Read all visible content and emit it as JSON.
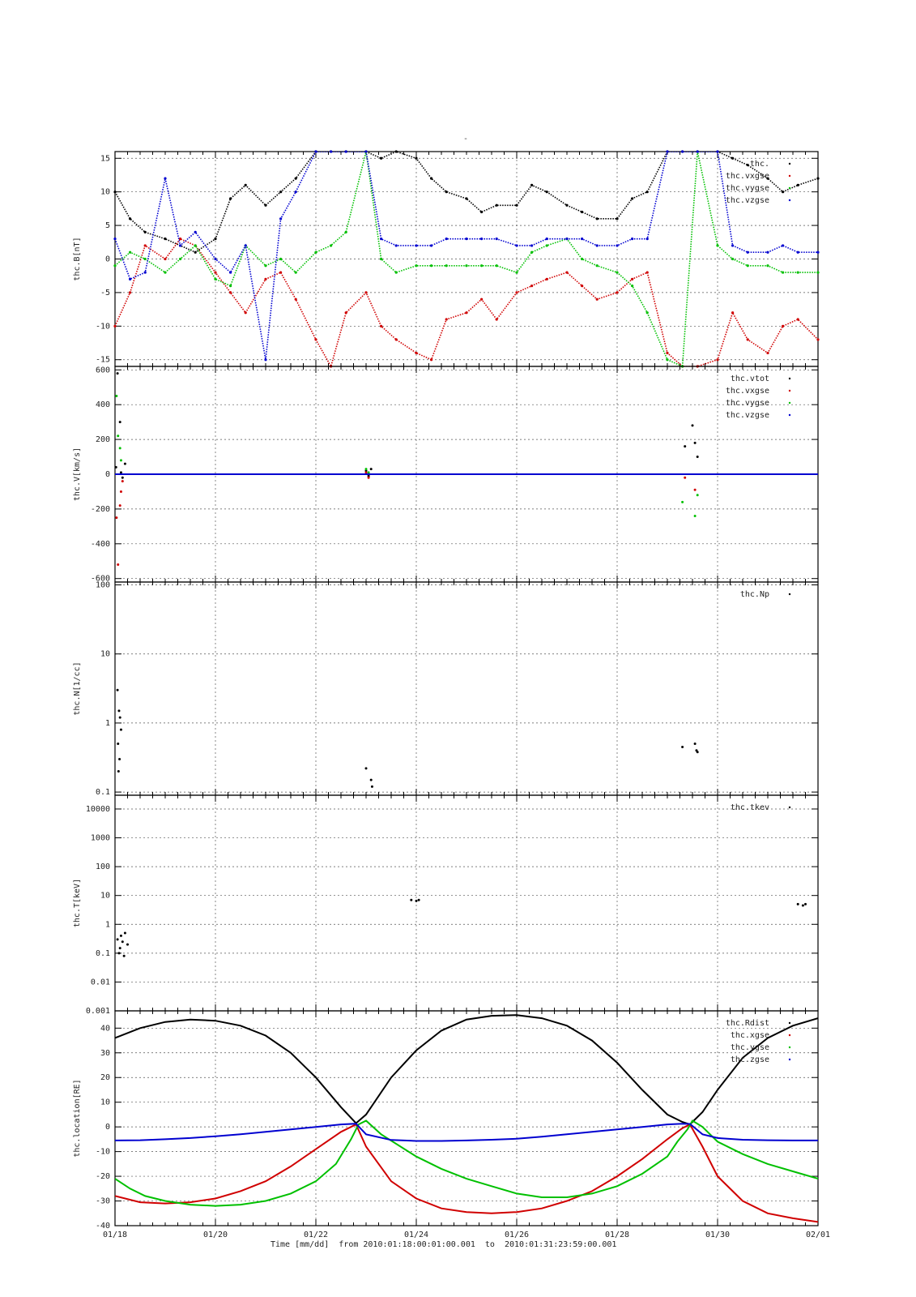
{
  "page": {
    "top_mark": "-"
  },
  "x_axis": {
    "ticks": [
      "01/18",
      "01/20",
      "01/22",
      "01/24",
      "01/26",
      "01/28",
      "01/30",
      "02/01"
    ],
    "caption": "Time [mm/dd]  from 2010:01:18:00:01:00.001  to  2010:01:31:23:59:00.001"
  },
  "colors": {
    "black": "#000000",
    "red": "#d00000",
    "green": "#00c000",
    "blue": "#0000d0",
    "grid": "#555555"
  },
  "chart_data": [
    {
      "type": "scatter",
      "ylabel": "thc.B[nT]",
      "ylim": [
        -16,
        16
      ],
      "yticks": [
        15,
        10,
        5,
        0,
        -5,
        -10,
        -15
      ],
      "ytick_labels": [
        "15",
        "10",
        "5",
        "0",
        "-5",
        "-10",
        "-15"
      ],
      "xrange_days": [
        0,
        14
      ],
      "series": [
        {
          "name": "thc.",
          "color": "#000000",
          "x": [
            0,
            0.3,
            0.6,
            1,
            1.3,
            1.6,
            2,
            2.3,
            2.6,
            3,
            3.3,
            3.6,
            4,
            4.3,
            4.6,
            5,
            5.3,
            5.6,
            6,
            6.3,
            6.6,
            7,
            7.3,
            7.6,
            8,
            8.3,
            8.6,
            9,
            9.3,
            9.6,
            10,
            10.3,
            10.6,
            11,
            11.3,
            11.6,
            12,
            12.3,
            12.6,
            13,
            13.3,
            13.6,
            14
          ],
          "y": [
            10,
            6,
            4,
            3,
            2,
            1,
            3,
            9,
            11,
            8,
            10,
            12,
            16,
            16,
            16,
            16,
            15,
            16,
            15,
            12,
            10,
            9,
            7,
            8,
            8,
            11,
            10,
            8,
            7,
            6,
            6,
            9,
            10,
            16,
            16,
            16,
            16,
            15,
            14,
            12,
            10,
            11,
            12
          ]
        },
        {
          "name": "thc.vxgse",
          "color": "#d00000",
          "x": [
            0,
            0.3,
            0.6,
            1,
            1.3,
            1.6,
            2,
            2.3,
            2.6,
            3,
            3.3,
            3.6,
            4,
            4.3,
            4.6,
            5,
            5.3,
            5.6,
            6,
            6.3,
            6.6,
            7,
            7.3,
            7.6,
            8,
            8.3,
            8.6,
            9,
            9.3,
            9.6,
            10,
            10.3,
            10.6,
            11,
            11.3,
            11.6,
            12,
            12.3,
            12.6,
            13,
            13.3,
            13.6,
            14
          ],
          "y": [
            -10,
            -5,
            2,
            0,
            3,
            2,
            -2,
            -5,
            -8,
            -3,
            -2,
            -6,
            -12,
            -16,
            -8,
            -5,
            -10,
            -12,
            -14,
            -15,
            -9,
            -8,
            -6,
            -9,
            -5,
            -4,
            -3,
            -2,
            -4,
            -6,
            -5,
            -3,
            -2,
            -14,
            -16,
            -16,
            -15,
            -8,
            -12,
            -14,
            -10,
            -9,
            -12
          ]
        },
        {
          "name": "thc.vygse",
          "color": "#00c000",
          "x": [
            0,
            0.3,
            0.6,
            1,
            1.3,
            1.6,
            2,
            2.3,
            2.6,
            3,
            3.3,
            3.6,
            4,
            4.3,
            4.6,
            5,
            5.3,
            5.6,
            6,
            6.3,
            6.6,
            7,
            7.3,
            7.6,
            8,
            8.3,
            8.6,
            9,
            9.3,
            9.6,
            10,
            10.3,
            10.6,
            11,
            11.3,
            11.6,
            12,
            12.3,
            12.6,
            13,
            13.3,
            13.6,
            14
          ],
          "y": [
            -1,
            1,
            0,
            -2,
            0,
            2,
            -3,
            -4,
            2,
            -1,
            0,
            -2,
            1,
            2,
            4,
            16,
            0,
            -2,
            -1,
            -1,
            -1,
            -1,
            -1,
            -1,
            -2,
            1,
            2,
            3,
            0,
            -1,
            -2,
            -4,
            -8,
            -15,
            -16,
            16,
            2,
            0,
            -1,
            -1,
            -2,
            -2,
            -2
          ]
        },
        {
          "name": "thc.vzgse",
          "color": "#0000d0",
          "x": [
            0,
            0.3,
            0.6,
            1,
            1.3,
            1.6,
            2,
            2.3,
            2.6,
            3,
            3.3,
            3.6,
            4,
            4.3,
            4.6,
            5,
            5.3,
            5.6,
            6,
            6.3,
            6.6,
            7,
            7.3,
            7.6,
            8,
            8.3,
            8.6,
            9,
            9.3,
            9.6,
            10,
            10.3,
            10.6,
            11,
            11.3,
            11.6,
            12,
            12.3,
            12.6,
            13,
            13.3,
            13.6,
            14
          ],
          "y": [
            3,
            -3,
            -2,
            12,
            2,
            4,
            0,
            -2,
            2,
            -15,
            6,
            10,
            16,
            16,
            16,
            16,
            3,
            2,
            2,
            2,
            3,
            3,
            3,
            3,
            2,
            2,
            3,
            3,
            3,
            2,
            2,
            3,
            3,
            16,
            16,
            16,
            16,
            2,
            1,
            1,
            2,
            1,
            1
          ]
        }
      ]
    },
    {
      "type": "scatter",
      "ylabel": "thc.V[km/s]",
      "ylim": [
        -620,
        620
      ],
      "yticks": [
        600,
        400,
        200,
        0,
        -200,
        -400,
        -600
      ],
      "ytick_labels": [
        "600",
        "400",
        "200",
        "0",
        "-200",
        "-400",
        "-600"
      ],
      "xrange_days": [
        0,
        14
      ],
      "series": [
        {
          "name": "thc.vtot",
          "color": "#000000",
          "x": [
            0.02,
            0.05,
            0.1,
            0.12,
            0.15,
            0.2,
            5.0,
            5.05,
            5.1,
            11.35,
            11.5,
            11.55,
            11.6
          ],
          "y": [
            40,
            580,
            300,
            10,
            -20,
            60,
            20,
            -10,
            30,
            160,
            280,
            180,
            100
          ]
        },
        {
          "name": "thc.vxgse",
          "color": "#d00000",
          "x": [
            0.03,
            0.06,
            0.1,
            0.12,
            0.15,
            5.0,
            5.05,
            11.35,
            11.55
          ],
          "y": [
            -250,
            -520,
            -180,
            -100,
            -40,
            10,
            -20,
            -20,
            -90
          ]
        },
        {
          "name": "thc.vygse",
          "color": "#00c000",
          "x": [
            0.03,
            0.06,
            0.1,
            0.12,
            5.0,
            5.05,
            11.3,
            11.55,
            11.6
          ],
          "y": [
            450,
            220,
            150,
            80,
            30,
            10,
            -160,
            -240,
            -120
          ]
        },
        {
          "name": "thc.vzgse",
          "color": "#0000d0",
          "x": [
            0,
            1,
            2,
            3,
            4,
            5,
            6,
            7,
            8,
            9,
            10,
            11,
            12,
            13,
            14
          ],
          "y": [
            0,
            0,
            0,
            0,
            0,
            0,
            0,
            0,
            0,
            0,
            0,
            0,
            0,
            0,
            0
          ]
        }
      ]
    },
    {
      "type": "scatter",
      "ylabel": "thc.N[1/cc]",
      "yscale": "log",
      "ylim": [
        0.09,
        110
      ],
      "yticks": [
        100,
        10,
        1,
        0.1
      ],
      "ytick_labels": [
        "100",
        "10",
        "1",
        "0.1"
      ],
      "xrange_days": [
        0,
        14
      ],
      "series": [
        {
          "name": "thc.Np",
          "color": "#000000",
          "x": [
            0.05,
            0.08,
            0.1,
            0.12,
            0.06,
            0.09,
            0.07,
            5.0,
            5.1,
            5.12,
            11.3,
            11.55,
            11.58,
            11.6
          ],
          "y": [
            3,
            1.5,
            1.2,
            0.8,
            0.5,
            0.3,
            0.2,
            0.22,
            0.15,
            0.12,
            0.45,
            0.5,
            0.4,
            0.38
          ]
        }
      ]
    },
    {
      "type": "scatter",
      "ylabel": "thc.T[keV]",
      "yscale": "log",
      "ylim": [
        0.001,
        30000
      ],
      "yticks": [
        10000,
        1000,
        100,
        10,
        1,
        0.1,
        0.01,
        0.001
      ],
      "ytick_labels": [
        "10000",
        "1000",
        "100",
        "10",
        "1",
        "0.1",
        "0.01",
        "0.001"
      ],
      "xrange_days": [
        0,
        14
      ],
      "series": [
        {
          "name": "thc.tkev",
          "color": "#000000",
          "x": [
            0.05,
            0.1,
            0.15,
            0.2,
            0.25,
            0.08,
            0.12,
            0.18,
            5.9,
            6.0,
            6.05,
            13.6,
            13.7,
            13.75
          ],
          "y": [
            0.3,
            0.15,
            0.25,
            0.5,
            0.2,
            0.1,
            0.4,
            0.08,
            7,
            6.5,
            7,
            5,
            4.5,
            5
          ]
        }
      ]
    },
    {
      "type": "line",
      "ylabel": "thc.location[RE]",
      "ylim": [
        -40,
        47
      ],
      "yticks": [
        40,
        30,
        20,
        10,
        0,
        -10,
        -20,
        -30,
        -40
      ],
      "ytick_labels": [
        "40",
        "30",
        "20",
        "10",
        "0",
        "-10",
        "-20",
        "-30",
        "-40"
      ],
      "xrange_days": [
        0,
        14
      ],
      "series": [
        {
          "name": "thc.Rdist",
          "color": "#000000",
          "x": [
            0,
            0.5,
            1,
            1.5,
            2,
            2.5,
            3,
            3.5,
            4,
            4.5,
            4.8,
            5,
            5.5,
            6,
            6.5,
            7,
            7.5,
            8,
            8.5,
            9,
            9.5,
            10,
            10.5,
            11,
            11.3,
            11.45,
            11.7,
            12,
            12.5,
            13,
            13.5,
            14
          ],
          "y": [
            36,
            40,
            42.5,
            43.5,
            43,
            41,
            37,
            30,
            20,
            8,
            1.5,
            5,
            20,
            31,
            39,
            43.5,
            45,
            45.3,
            44,
            41,
            35,
            26,
            15,
            5,
            2,
            1,
            6,
            15,
            28,
            36,
            41,
            44
          ]
        },
        {
          "name": "thc.xgse",
          "color": "#d00000",
          "x": [
            0,
            0.5,
            1,
            1.5,
            2,
            2.5,
            3,
            3.5,
            4,
            4.5,
            4.8,
            5,
            5.5,
            6,
            6.5,
            7,
            7.5,
            8,
            8.5,
            9,
            9.5,
            10,
            10.5,
            11,
            11.3,
            11.45,
            11.7,
            12,
            12.5,
            13,
            13.5,
            14
          ],
          "y": [
            -28,
            -30.5,
            -31,
            -30.5,
            -29,
            -26,
            -22,
            -16,
            -9,
            -2,
            1,
            -8,
            -22,
            -29,
            -33,
            -34.5,
            -35,
            -34.5,
            -33,
            -30,
            -26,
            -20,
            -13,
            -5,
            -0.5,
            1,
            -8,
            -20,
            -30,
            -35,
            -37,
            -38.5
          ]
        },
        {
          "name": "thc.ygse",
          "color": "#00c000",
          "x": [
            0,
            0.3,
            0.6,
            1,
            1.5,
            2,
            2.5,
            3,
            3.5,
            4,
            4.4,
            4.7,
            4.85,
            5,
            5.3,
            6,
            6.5,
            7,
            7.5,
            8,
            8.5,
            9,
            9.5,
            10,
            10.5,
            11,
            11.2,
            11.4,
            11.5,
            11.7,
            12,
            12.5,
            13,
            13.5,
            14
          ],
          "y": [
            -21,
            -25,
            -28,
            -30,
            -31.5,
            -32,
            -31.5,
            -30,
            -27,
            -22,
            -15,
            -5,
            1,
            2.5,
            -3,
            -12,
            -17,
            -21,
            -24,
            -27,
            -28.5,
            -28.5,
            -27,
            -24,
            -19,
            -12,
            -6,
            -1,
            2.5,
            0,
            -6,
            -11,
            -15,
            -18,
            -21
          ]
        },
        {
          "name": "thc.zgse",
          "color": "#0000d0",
          "x": [
            0,
            0.5,
            1,
            1.5,
            2,
            2.5,
            3,
            3.5,
            4,
            4.5,
            4.8,
            5,
            5.5,
            6,
            6.5,
            7,
            7.5,
            8,
            8.5,
            9,
            9.5,
            10,
            10.5,
            11,
            11.3,
            11.45,
            11.7,
            12,
            12.5,
            13,
            13.5,
            14
          ],
          "y": [
            -5.5,
            -5.4,
            -5,
            -4.5,
            -3.8,
            -3,
            -2,
            -1,
            0,
            1,
            1.3,
            -3,
            -5.3,
            -5.7,
            -5.7,
            -5.5,
            -5.2,
            -4.8,
            -4,
            -3,
            -2,
            -1,
            0,
            1,
            1.3,
            1.2,
            -3,
            -4.5,
            -5.2,
            -5.4,
            -5.5,
            -5.5
          ]
        }
      ]
    }
  ]
}
